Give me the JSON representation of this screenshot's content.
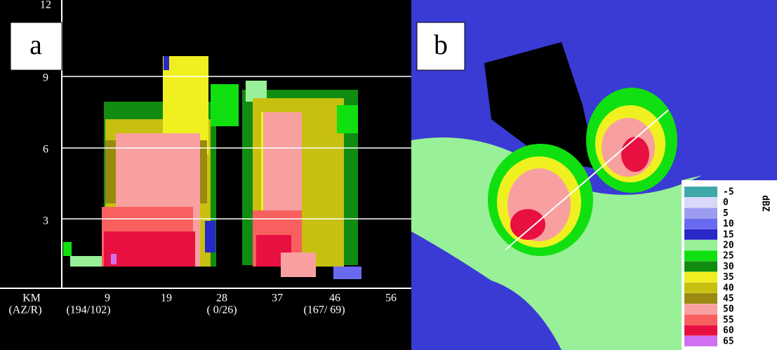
{
  "panel_a": {
    "label": "a",
    "y_ticks": [
      "12",
      "9",
      "6",
      "3"
    ],
    "y_unit": "KM",
    "x_ticks": [
      "9",
      "19",
      "28",
      "37",
      "46",
      "56"
    ],
    "x_row_label": "(AZ/R)",
    "azimuth_range": [
      "(194/102)",
      "( 0/26)",
      "(167/ 69)"
    ]
  },
  "panel_b": {
    "label": "b",
    "colorbar": {
      "unit": "dBZ",
      "entries": [
        {
          "label": "-5",
          "color": "#3fa8a8"
        },
        {
          "label": "0",
          "color": "#d8d8f8"
        },
        {
          "label": "5",
          "color": "#9c9cf0"
        },
        {
          "label": "10",
          "color": "#6a6af0"
        },
        {
          "label": "15",
          "color": "#2828c8"
        },
        {
          "label": "20",
          "color": "#98f098"
        },
        {
          "label": "25",
          "color": "#10e010"
        },
        {
          "label": "30",
          "color": "#108c10"
        },
        {
          "label": "35",
          "color": "#f0f020"
        },
        {
          "label": "40",
          "color": "#c8c010"
        },
        {
          "label": "45",
          "color": "#9a8a10"
        },
        {
          "label": "50",
          "color": "#f8a0a0"
        },
        {
          "label": "55",
          "color": "#f86060"
        },
        {
          "label": "60",
          "color": "#e81040"
        },
        {
          "label": "65",
          "color": "#d070f0"
        }
      ]
    }
  }
}
